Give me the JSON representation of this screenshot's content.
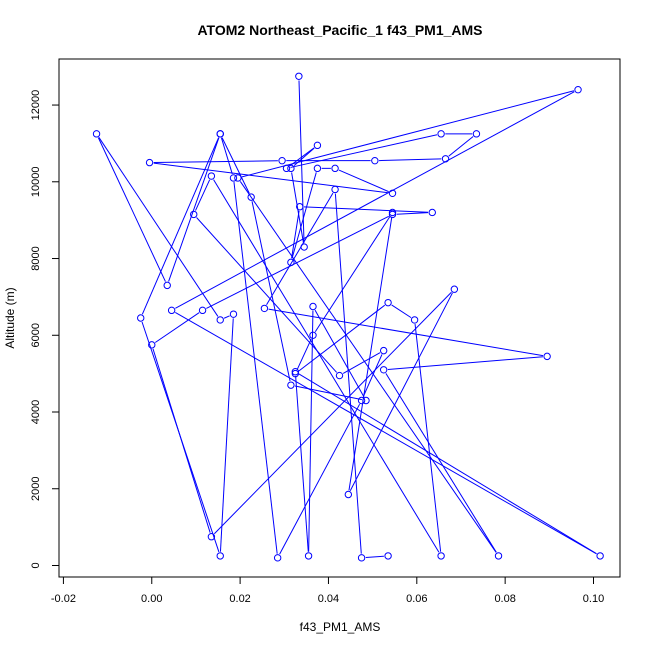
{
  "chart_data": {
    "type": "line",
    "title": "ATOM2 Northeast_Pacific_1 f43_PM1_AMS",
    "xlabel": "f43_PM1_AMS",
    "ylabel": "Altitude (m)",
    "xlim": [
      -0.021,
      0.106
    ],
    "ylim": [
      -300,
      13200
    ],
    "xticks": [
      -0.02,
      0.0,
      0.02,
      0.04,
      0.06,
      0.08,
      0.1
    ],
    "xtick_labels": [
      "-0.02",
      "0.00",
      "0.02",
      "0.04",
      "0.06",
      "0.08",
      "0.10"
    ],
    "yticks": [
      0,
      2000,
      4000,
      6000,
      8000,
      10000,
      12000
    ],
    "ytick_labels": [
      "0",
      "2000",
      "4000",
      "6000",
      "8000",
      "10000",
      "12000"
    ],
    "color": "#0000ff",
    "marker": "open-circle",
    "grid": false,
    "legend": "none",
    "series": [
      {
        "x": [
          0.0333,
          0.0345,
          0.0315,
          0.0375,
          0.0305,
          0.0655,
          0.0735,
          0.0665,
          0.0505,
          0.0295,
          -0.0005,
          0.0545,
          0.0415,
          0.0375,
          0.0315,
          0.0335,
          0.0635,
          0.0545,
          0.0115,
          0.0,
          0.0135,
          0.0685,
          0.0445,
          0.0545,
          0.0365,
          0.0325,
          0.0535,
          0.0595,
          0.0655,
          0.0135,
          0.0095,
          0.0425,
          0.0525,
          0.0475,
          0.0285,
          0.0185,
          0.0155,
          0.0035,
          -0.0125,
          0.0155,
          0.0185,
          0.0155,
          -0.0025,
          0.0155,
          0.0225,
          0.0315,
          0.0485,
          0.0365,
          0.0355,
          0.0325,
          0.1015,
          0.0045,
          0.0965,
          0.0195,
          0.0785,
          0.0525,
          0.0895,
          0.0255,
          0.0415,
          0.0475,
          0.0535
        ],
        "y": [
          12750,
          8300,
          10350,
          10950,
          10350,
          11250,
          11250,
          10600,
          10550,
          10550,
          10500,
          9700,
          10350,
          10350,
          7900,
          9350,
          9200,
          9150,
          6650,
          5750,
          750,
          7200,
          1850,
          9200,
          6000,
          5000,
          6850,
          6400,
          250,
          10150,
          9150,
          4950,
          5600,
          4300,
          200,
          10100,
          11250,
          7300,
          11250,
          6400,
          6550,
          250,
          6450,
          11250,
          9600,
          4700,
          4300,
          6750,
          250,
          5050,
          250,
          6650,
          12400,
          10100,
          250,
          5100,
          5450,
          6700,
          9800,
          200,
          250
        ]
      }
    ],
    "cutoff_note": ""
  }
}
